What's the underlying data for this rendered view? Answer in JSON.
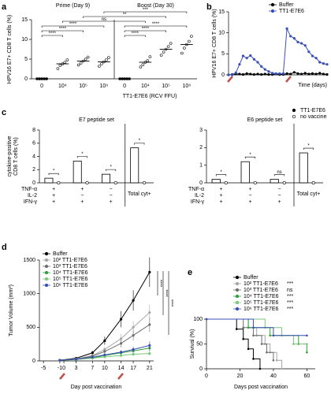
{
  "chart_data": [
    {
      "panel": "a",
      "type": "dot",
      "group_labels": [
        "Prime (Day 9)",
        "Boost (Day 30)"
      ],
      "categories": [
        "0",
        "10⁴",
        "10⁵",
        "10⁶",
        "0",
        "10⁴",
        "10⁵",
        "10⁶"
      ],
      "values": [
        0,
        3.8,
        4.5,
        4.3,
        0,
        4.2,
        7.5,
        8.7
      ],
      "points": [
        [
          0,
          0,
          0,
          0,
          0
        ],
        [
          2.6,
          3.4,
          3.8,
          4.2,
          4.8
        ],
        [
          3.5,
          4.0,
          4.5,
          5.0,
          5.5
        ],
        [
          3.2,
          3.8,
          4.3,
          4.8,
          5.4
        ],
        [
          0,
          0,
          0,
          0,
          0
        ],
        [
          3.0,
          3.6,
          4.2,
          4.6,
          5.6
        ],
        [
          6.0,
          6.8,
          7.5,
          8.2,
          9.0
        ],
        [
          6.5,
          7.8,
          8.7,
          9.5,
          10.8
        ]
      ],
      "color": "#000000",
      "comparisons": [
        {
          "from": 0,
          "to": 1,
          "label": "****"
        },
        {
          "from": 0,
          "to": 2,
          "label": "****"
        },
        {
          "from": 0,
          "to": 3,
          "label": "****"
        },
        {
          "from": 4,
          "to": 5,
          "label": "****"
        },
        {
          "from": 4,
          "to": 6,
          "label": "****"
        },
        {
          "from": 4,
          "to": 7,
          "label": "****"
        },
        {
          "from": 1,
          "to": 5,
          "label": "ns"
        },
        {
          "from": 2,
          "to": 6,
          "label": "**"
        },
        {
          "from": 3,
          "to": 7,
          "label": "***"
        }
      ],
      "ylabel": "HPV16 E7+ CD8 T cells (%)",
      "xlabel": "TT1-E7E6 (RCV FFU)",
      "ylim": [
        0,
        15
      ],
      "yticks": [
        0,
        5,
        10,
        15
      ]
    },
    {
      "panel": "b",
      "type": "line",
      "ylabel": "HPV16 E7+ CD8 T cells (%)",
      "xlabel": "Time (days)",
      "x": [
        0,
        1,
        2,
        3,
        4,
        5,
        6,
        7,
        8,
        9,
        10,
        11,
        12,
        13,
        14,
        15,
        16,
        17,
        18,
        19,
        20,
        21,
        22,
        23,
        24,
        25,
        26,
        27
      ],
      "xlim": [
        0,
        27
      ],
      "ylim": [
        0,
        15
      ],
      "yticks": [
        0,
        5,
        10,
        15
      ],
      "legend": "upper right",
      "series": [
        {
          "name": "Buffer",
          "color": "#000000",
          "values": [
            0,
            0.1,
            0.2,
            0.2,
            0.1,
            0.3,
            0.2,
            0.1,
            0.2,
            0.1,
            0.2,
            0.1,
            0.1,
            0.2,
            0.1,
            0.1,
            0.3,
            0.2,
            0.6,
            0.3,
            0.2,
            0.4,
            0.2,
            0.3,
            0.2,
            0.4,
            0.2,
            0.1
          ]
        },
        {
          "name": "TT1-E7E6",
          "color": "#3a4fb5",
          "values": [
            0,
            0,
            0.5,
            2.5,
            4.5,
            4.0,
            4.6,
            3.7,
            3.0,
            2.0,
            1.3,
            0.8,
            0.4,
            0.3,
            0.3,
            0.3,
            11.0,
            9.2,
            8.7,
            7.8,
            7.5,
            7.0,
            5.5,
            4.5,
            4.0,
            3.0,
            2.7,
            2.5
          ]
        }
      ]
    },
    {
      "panel": "c",
      "type": "bar",
      "title": "E7 peptide set",
      "ylabel": [
        "cytokine-positive",
        "CD8 T cells (%)"
      ],
      "categories": [
        null,
        null,
        null,
        "Total cyt+"
      ],
      "row_labels": [
        "TNF-α",
        "IL-2",
        "IFN-γ"
      ],
      "signs": [
        [
          "+",
          "+",
          "+"
        ],
        [
          "+",
          "−",
          "+"
        ],
        [
          "−",
          "−",
          "+"
        ]
      ],
      "significance": [
        "*",
        "*",
        "*",
        "*"
      ],
      "ylim": [
        0,
        8
      ],
      "yticks": [
        0,
        2,
        4,
        6,
        8
      ],
      "series": [
        {
          "color": "#000000",
          "values": [
            0.7,
            3.3,
            1.3,
            5.3
          ]
        },
        {
          "color": "#000000",
          "values": [
            0,
            0,
            0,
            0
          ]
        }
      ]
    },
    {
      "type": "bar",
      "title": "E6 peptide set",
      "categories": [
        null,
        null,
        null,
        "Total cyt+"
      ],
      "row_labels": [
        "TNF-α",
        "IL-2",
        "IFN-γ"
      ],
      "signs": [
        [
          "+",
          "+",
          "+"
        ],
        [
          "+",
          "−",
          "+"
        ],
        [
          "−",
          "−",
          "+"
        ]
      ],
      "significance": [
        "*",
        "*",
        "ns",
        "*"
      ],
      "ylim": [
        0,
        3
      ],
      "yticks": [
        0,
        1,
        2,
        3
      ],
      "legend": "upper right",
      "series": [
        {
          "name": "TT1-E7E6",
          "color": "#000000",
          "values": [
            0.2,
            1.2,
            0.2,
            1.7
          ]
        },
        {
          "name": "no vaccine",
          "color": "#000000",
          "values": [
            0,
            0,
            0,
            0
          ]
        }
      ]
    },
    {
      "panel": "d",
      "type": "line",
      "ylabel": "Tumor Volume (mm³)",
      "xlabel": "Day post vaccination",
      "x": [
        -1,
        3,
        7,
        10,
        14,
        17,
        21
      ],
      "xlim": [
        -6,
        22
      ],
      "xticks": [
        -5,
        -1,
        0,
        3,
        7,
        10,
        14,
        17,
        21
      ],
      "ylim": [
        0,
        1500
      ],
      "yticks": [
        0,
        500,
        1000,
        1500
      ],
      "legend": "upper left",
      "significance": [
        "****",
        "****",
        "****"
      ],
      "series": [
        {
          "name": "Buffer",
          "color": "#000000",
          "values": [
            10,
            40,
            120,
            300,
            620,
            900,
            1320
          ],
          "errors": [
            5,
            10,
            30,
            60,
            120,
            150,
            220
          ]
        },
        {
          "name": "10² TT1-E7E6",
          "color": "#a6a6a6",
          "values": [
            10,
            30,
            80,
            170,
            330,
            500,
            720
          ],
          "errors": [
            5,
            8,
            20,
            40,
            70,
            90,
            120
          ]
        },
        {
          "name": "10³ TT1-E7E6",
          "color": "#6f6f6f",
          "values": [
            10,
            25,
            70,
            140,
            260,
            380,
            540
          ],
          "errors": [
            5,
            8,
            20,
            30,
            60,
            80,
            110
          ]
        },
        {
          "name": "10⁴ TT1-E7E6",
          "color": "#2e9e3e",
          "values": [
            10,
            20,
            45,
            80,
            120,
            150,
            190
          ],
          "errors": [
            5,
            5,
            10,
            20,
            30,
            40,
            50
          ]
        },
        {
          "name": "10⁵ TT1-E7E6",
          "color": "#7ac77a",
          "values": [
            10,
            20,
            40,
            60,
            80,
            100,
            110
          ],
          "errors": [
            5,
            5,
            10,
            15,
            20,
            25,
            30
          ]
        },
        {
          "name": "10⁶ TT1-E7E6",
          "color": "#3a4fb5",
          "values": [
            10,
            25,
            55,
            90,
            130,
            170,
            230
          ],
          "errors": [
            5,
            5,
            10,
            20,
            30,
            40,
            60
          ]
        }
      ]
    },
    {
      "panel": "e",
      "type": "survival",
      "ylabel": "Survival (%)",
      "xlabel": "Days post vaccination",
      "xlim": [
        0,
        65
      ],
      "xticks": [
        0,
        20,
        40,
        60
      ],
      "ylim": [
        0,
        100
      ],
      "yticks": [
        0,
        50,
        100
      ],
      "legend": "upper right",
      "series": [
        {
          "name": "Buffer",
          "color": "#000000",
          "x": [
            0,
            18,
            22,
            25,
            28,
            32
          ],
          "values": [
            100,
            80,
            60,
            40,
            20,
            0
          ]
        },
        {
          "name": "10² TT1-E7E6",
          "color": "#a6a6a6",
          "significance": "***",
          "x": [
            0,
            25,
            30,
            35,
            38,
            42,
            45
          ],
          "values": [
            100,
            83,
            67,
            50,
            33,
            17,
            0
          ]
        },
        {
          "name": "10³ TT1-E7E6",
          "color": "#6f6f6f",
          "significance": "ns",
          "x": [
            0,
            22,
            28,
            33,
            36,
            40
          ],
          "values": [
            100,
            83,
            67,
            50,
            33,
            17
          ]
        },
        {
          "name": "10⁴ TT1-E7E6",
          "color": "#2e9e3e",
          "significance": "***",
          "x": [
            0,
            25,
            38,
            55,
            60
          ],
          "values": [
            100,
            83,
            67,
            50,
            33
          ]
        },
        {
          "name": "10⁵ TT1-E7E6",
          "color": "#7ac77a",
          "significance": "***",
          "x": [
            0,
            35,
            45,
            52,
            60
          ],
          "values": [
            100,
            83,
            67,
            50,
            50
          ]
        },
        {
          "name": "10⁶ TT1-E7E6",
          "color": "#3a4fb5",
          "significance": "***",
          "x": [
            0,
            28,
            40,
            60
          ],
          "values": [
            100,
            83,
            67,
            67
          ]
        }
      ]
    }
  ]
}
